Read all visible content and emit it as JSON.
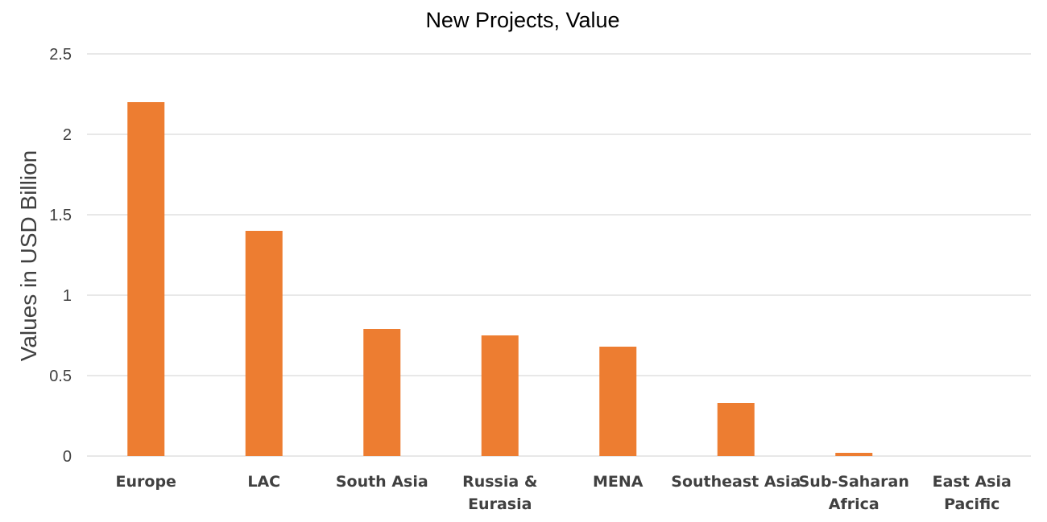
{
  "chart_data": {
    "type": "bar",
    "title": "New Projects, Value",
    "xlabel": "",
    "ylabel": "Values in USD Billion",
    "categories": [
      [
        "Europe"
      ],
      [
        "LAC"
      ],
      [
        "South Asia"
      ],
      [
        "Russia &",
        "Eurasia"
      ],
      [
        "MENA"
      ],
      [
        "Southeast Asia"
      ],
      [
        "Sub-Saharan",
        "Africa"
      ],
      [
        "East Asia",
        "Pacific"
      ]
    ],
    "values": [
      2.2,
      1.4,
      0.79,
      0.75,
      0.68,
      0.33,
      0.02,
      0
    ],
    "ylim": [
      0,
      2.5
    ],
    "yticks": [
      "0",
      "0.5",
      "1",
      "1.5",
      "2",
      "2.5"
    ],
    "grid": true,
    "legend": "none",
    "bar_color": "#ed7d31",
    "grid_color": "#d9d9d9"
  }
}
